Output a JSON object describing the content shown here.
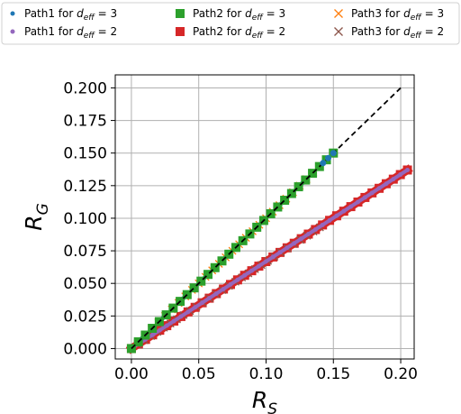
{
  "chart_data": {
    "type": "scatter",
    "title": "",
    "xlabel_base": "R",
    "xlabel_sub": "S",
    "ylabel_base": "R",
    "ylabel_sub": "G",
    "xlim": [
      -0.012,
      0.21
    ],
    "ylim": [
      -0.008,
      0.21
    ],
    "grid": true,
    "legend_position": "top",
    "x_ticks": [
      0.0,
      0.05,
      0.1,
      0.15,
      0.2
    ],
    "x_tick_labels": [
      "0.00",
      "0.05",
      "0.10",
      "0.15",
      "0.20"
    ],
    "y_ticks": [
      0.0,
      0.025,
      0.05,
      0.075,
      0.1,
      0.125,
      0.15,
      0.175,
      0.2
    ],
    "y_tick_labels": [
      "0.000",
      "0.025",
      "0.050",
      "0.075",
      "0.100",
      "0.125",
      "0.150",
      "0.175",
      "0.200"
    ],
    "reference_line": {
      "style": "dashed",
      "color": "#000000",
      "x": [
        0,
        0.2
      ],
      "y": [
        0,
        0.2
      ]
    },
    "series": [
      {
        "name": "Path1 for d_eff = 3",
        "label_base": "Path1 for ",
        "label_sub": "eff",
        "label_tail": " = 3",
        "marker": "dot",
        "color": "#1f77b4",
        "x": [
          0,
          0.15
        ],
        "y": [
          0,
          0.15
        ],
        "n": 40
      },
      {
        "name": "Path1 for d_eff = 2",
        "label_base": "Path1 for ",
        "label_sub": "eff",
        "label_tail": " = 2",
        "marker": "dot",
        "color": "#9467bd",
        "x": [
          0,
          0.205
        ],
        "y": [
          0,
          0.137
        ],
        "n": 40
      },
      {
        "name": "Path2 for d_eff = 3",
        "label_base": "Path2 for ",
        "label_sub": "eff",
        "label_tail": " = 3",
        "marker": "square",
        "color": "#2ca02c",
        "x": [
          0,
          0.15
        ],
        "y": [
          0,
          0.15
        ],
        "n": 30
      },
      {
        "name": "Path2 for d_eff = 2",
        "label_base": "Path2 for ",
        "label_sub": "eff",
        "label_tail": " = 2",
        "marker": "square",
        "color": "#d62728",
        "x": [
          0,
          0.205
        ],
        "y": [
          0,
          0.137
        ],
        "n": 40
      },
      {
        "name": "Path3 for d_eff = 3",
        "label_base": "Path3 for ",
        "label_sub": "eff",
        "label_tail": " = 3",
        "marker": "x",
        "color": "#ff7f0e",
        "x": [
          0,
          0.145
        ],
        "y": [
          0,
          0.145
        ],
        "n": 30
      },
      {
        "name": "Path3 for d_eff = 2",
        "label_base": "Path3 for ",
        "label_sub": "eff",
        "label_tail": " = 2",
        "marker": "x",
        "color": "#8c564b",
        "x": [
          0,
          0.14
        ],
        "y": [
          0,
          0.093
        ],
        "n": 30
      }
    ]
  }
}
